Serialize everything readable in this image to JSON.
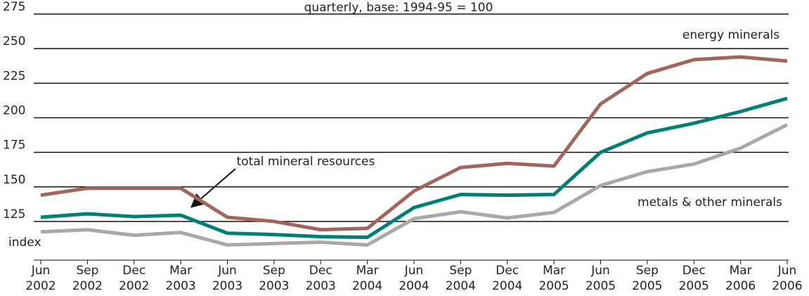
{
  "chart_data": {
    "type": "line",
    "title": "quarterly, base: 1994-95 = 100",
    "y_label": "index",
    "categories": [
      "Jun 2002",
      "Sep 2002",
      "Dec 2002",
      "Mar 2003",
      "Jun 2003",
      "Sep 2003",
      "Dec 2003",
      "Mar 2004",
      "Jun 2004",
      "Sep 2004",
      "Dec 2004",
      "Mar 2005",
      "Jun 2005",
      "Sep 2005",
      "Dec 2005",
      "Mar 2006",
      "Jun 2006"
    ],
    "series": [
      {
        "name": "energy minerals",
        "color": "#a0665c",
        "values": [
          144,
          149,
          149,
          149,
          128,
          125,
          119,
          120,
          147,
          164,
          167,
          165,
          210,
          232,
          242,
          244,
          241
        ]
      },
      {
        "name": "total mineral resources",
        "color": "#007f77",
        "values": [
          128,
          130.5,
          128.5,
          129.5,
          116.5,
          115.5,
          114,
          113.5,
          135,
          144.5,
          144,
          144.5,
          175,
          189,
          196,
          204.5,
          214
        ]
      },
      {
        "name": "metals & other minerals",
        "color": "#a8a8a8",
        "values": [
          117.5,
          119,
          115,
          117,
          108,
          109,
          110,
          108,
          127,
          132,
          127.5,
          131.5,
          151,
          161,
          166.5,
          178,
          195
        ]
      }
    ],
    "ylim": [
      97,
      275
    ],
    "yticks": [
      125,
      150,
      175,
      200,
      225,
      250,
      275
    ],
    "grid": true
  }
}
